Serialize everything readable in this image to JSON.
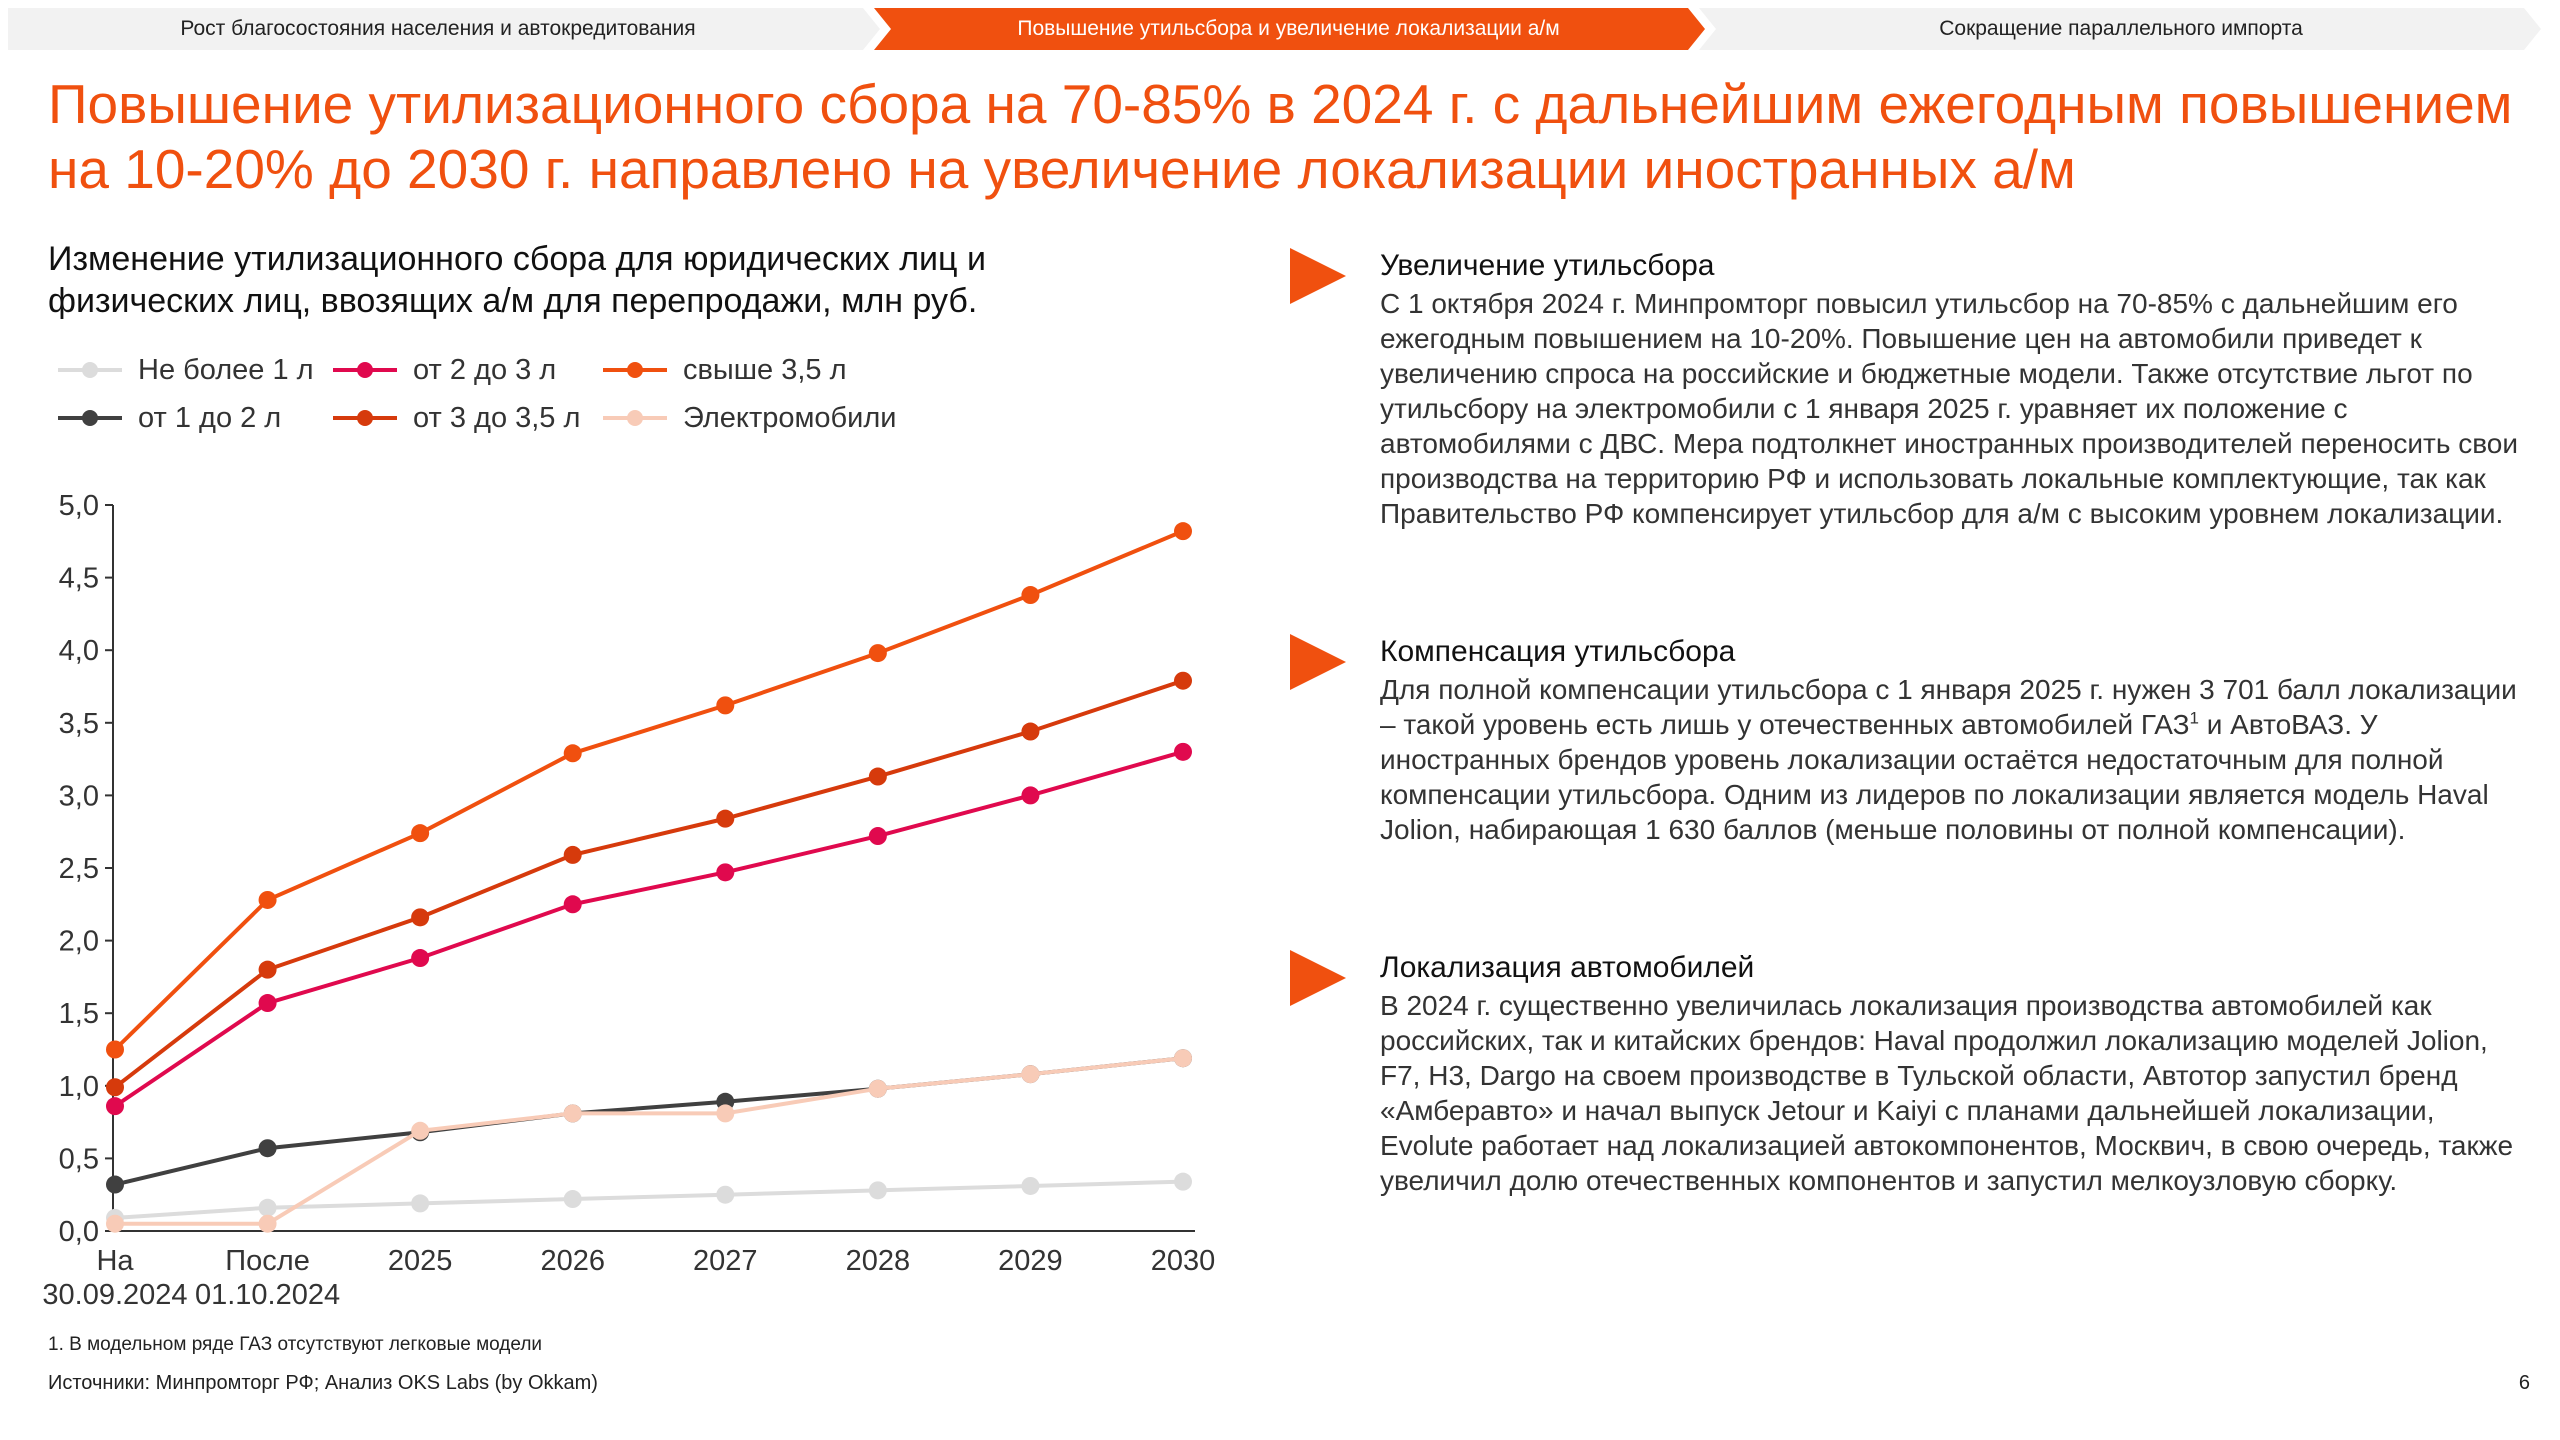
{
  "nav": {
    "tabs": [
      {
        "label": "Рост благосостояния населения и автокредитования",
        "active": false
      },
      {
        "label": "Повышение утильсбора и увеличение локализации а/м",
        "active": true
      },
      {
        "label": "Сокращение параллельного импорта",
        "active": false
      }
    ]
  },
  "title": "Повышение утилизационного сбора на 70-85% в 2024 г. с дальнейшим ежегодным повышением на 10-20% до 2030 г. направлено на увеличение локализации иностранных а/м",
  "chart_title": "Изменение утилизационного сбора для юридических лиц и физических лиц, ввозящих а/м для перепродажи, млн руб.",
  "chart_data": {
    "type": "line",
    "title": "Изменение утилизационного сбора для юридических лиц и физических лиц, ввозящих а/м для перепродажи, млн руб.",
    "categories": [
      "На 30.09.2024",
      "После 01.10.2024",
      "2025",
      "2026",
      "2027",
      "2028",
      "2029",
      "2030"
    ],
    "category_lines": [
      [
        "На",
        "30.09.2024"
      ],
      [
        "После",
        "01.10.2024"
      ],
      [
        "2025"
      ],
      [
        "2026"
      ],
      [
        "2027"
      ],
      [
        "2028"
      ],
      [
        "2029"
      ],
      [
        "2030"
      ]
    ],
    "ylim": [
      0,
      5
    ],
    "yticks": [
      0,
      0.5,
      1,
      1.5,
      2,
      2.5,
      3,
      3.5,
      4,
      4.5,
      5
    ],
    "ytick_labels": [
      "0,0",
      "0,5",
      "1,0",
      "1,5",
      "2,0",
      "2,5",
      "3,0",
      "3,5",
      "4,0",
      "4,5",
      "5,0"
    ],
    "xlabel": "",
    "ylabel": "",
    "grid": false,
    "series": [
      {
        "name": "Не более 1 л",
        "color": "#dcdcdc",
        "values": [
          0.09,
          0.16,
          0.19,
          0.22,
          0.25,
          0.28,
          0.31,
          0.34
        ]
      },
      {
        "name": "от 1 до 2 л",
        "color": "#404040",
        "values": [
          0.32,
          0.57,
          0.68,
          0.81,
          0.89,
          0.98,
          1.08,
          1.19
        ]
      },
      {
        "name": "от 2 до 3 л",
        "color": "#e0094e",
        "values": [
          0.86,
          1.57,
          1.88,
          2.25,
          2.47,
          2.72,
          3.0,
          3.3
        ]
      },
      {
        "name": "от 3 до 3,5 л",
        "color": "#d63a0c",
        "values": [
          0.99,
          1.8,
          2.16,
          2.59,
          2.84,
          3.13,
          3.44,
          3.79
        ]
      },
      {
        "name": "свыше 3,5 л",
        "color": "#f0500f",
        "values": [
          1.25,
          2.28,
          2.74,
          3.29,
          3.62,
          3.98,
          4.38,
          4.82
        ]
      },
      {
        "name": "Электромобили",
        "color": "#f8cbb7",
        "values": [
          0.05,
          0.05,
          0.69,
          0.81,
          0.81,
          0.98,
          1.08,
          1.19
        ]
      }
    ]
  },
  "sections": [
    {
      "heading": "Увеличение утильсбора",
      "text": "С 1 октября 2024 г. Минпромторг повысил утильсбор на 70-85% с дальнейшим его ежегодным повышением на 10-20%. Повышение цен на автомобили приведет к увеличению спроса на российские и бюджетные модели. Также отсутствие льгот по утильсбору на электромобили с 1 января 2025 г. уравняет их положение с автомобилями с ДВС. Мера подтолкнет иностранных производителей переносить свои производства на территорию РФ и использовать локальные комплектующие, так как Правительство РФ компенсирует утильсбор для а/м с высоким уровнем локализации."
    },
    {
      "heading": "Компенсация утильсбора",
      "text_before_sup": "Для полной компенсации утильсбора с 1 января 2025 г. нужен 3 701 балл локализации – такой уровень есть лишь у отечественных автомобилей ГАЗ",
      "sup": "1",
      "text_after_sup": " и АвтоВАЗ. У иностранных брендов уровень локализации остаётся недостаточным для полной компенсации утильсбора. Одним из лидеров по локализации является модель Haval Jolion, набирающая 1 630 баллов (меньше половины от полной компенсации)."
    },
    {
      "heading": "Локализация автомобилей",
      "text": "В 2024 г. существенно увеличилась локализация производства автомобилей как российских, так и китайских брендов: Haval продолжил локализацию моделей Jolion, F7, H3, Dargo на своем производстве в Тульской области, Автотор запустил бренд «Амберавто» и начал выпуск Jetour и Kaiyi с планами дальнейшей локализации, Evolute работает над локализацией автокомпонентов, Москвич, в свою очередь, также увеличил долю отечественных компонентов и запустил мелкоузловую сборку."
    }
  ],
  "footnote": "1. В модельном ряде ГАЗ отсутствуют легковые модели",
  "sources": "Источники: Минпромторг РФ; Анализ OKS Labs (by Okkam)",
  "page_number": "6",
  "colors": {
    "accent": "#f0500f",
    "nav_bg": "#f2f2f2"
  }
}
